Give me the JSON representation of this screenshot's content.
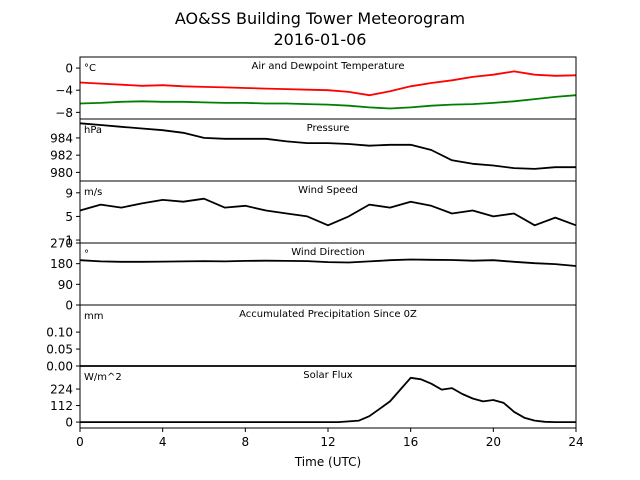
{
  "title": "AO&SS Building Tower Meteorogram",
  "subtitle": "2016-01-06",
  "xlabel": "Time (UTC)",
  "chart_data": [
    {
      "type": "line",
      "title": "Air and Dewpoint Temperature",
      "unit_label": "°C",
      "xlim": [
        0,
        24
      ],
      "ylim": [
        -9.2,
        2.0
      ],
      "yticks": [
        0,
        -4,
        -8
      ],
      "ytick_labels": [
        "0",
        "−4",
        "−8"
      ],
      "x": [
        0,
        1,
        2,
        3,
        4,
        5,
        6,
        7,
        8,
        9,
        10,
        11,
        12,
        13,
        14,
        15,
        16,
        17,
        18,
        19,
        20,
        21,
        22,
        23,
        24
      ],
      "series": [
        {
          "color": "#ff0000",
          "values": [
            -2.6,
            -2.8,
            -3.0,
            -3.2,
            -3.1,
            -3.3,
            -3.4,
            -3.5,
            -3.6,
            -3.7,
            -3.8,
            -3.9,
            -4.0,
            -4.3,
            -4.9,
            -4.2,
            -3.3,
            -2.7,
            -2.2,
            -1.6,
            -1.2,
            -0.6,
            -1.2,
            -1.4,
            -1.3
          ]
        },
        {
          "color": "#008000",
          "values": [
            -6.4,
            -6.3,
            -6.1,
            -6.0,
            -6.1,
            -6.1,
            -6.2,
            -6.3,
            -6.3,
            -6.4,
            -6.4,
            -6.5,
            -6.6,
            -6.8,
            -7.1,
            -7.3,
            -7.1,
            -6.8,
            -6.6,
            -6.5,
            -6.3,
            -6.0,
            -5.6,
            -5.2,
            -4.9
          ]
        }
      ]
    },
    {
      "type": "line",
      "title": "Pressure",
      "unit_label": "hPa",
      "xlim": [
        0,
        24
      ],
      "ylim": [
        979.0,
        986.2
      ],
      "yticks": [
        984,
        982,
        980
      ],
      "ytick_labels": [
        "984",
        "982",
        "980"
      ],
      "x": [
        0,
        1,
        2,
        3,
        4,
        5,
        6,
        7,
        8,
        9,
        10,
        11,
        12,
        13,
        14,
        15,
        16,
        17,
        18,
        19,
        20,
        21,
        22,
        23,
        24
      ],
      "series": [
        {
          "color": "#000000",
          "values": [
            985.7,
            985.5,
            985.3,
            985.1,
            984.9,
            984.6,
            984.0,
            983.9,
            983.9,
            983.9,
            983.6,
            983.4,
            983.4,
            983.3,
            983.1,
            983.2,
            983.2,
            982.6,
            981.4,
            981.0,
            980.8,
            980.5,
            980.4,
            980.6,
            980.6
          ]
        }
      ]
    },
    {
      "type": "line",
      "title": "Wind Speed",
      "unit_label": "m/s",
      "xlim": [
        0,
        24
      ],
      "ylim": [
        0.5,
        11.0
      ],
      "yticks": [
        9,
        5,
        1
      ],
      "ytick_labels": [
        "9",
        "5",
        "1"
      ],
      "x": [
        0,
        1,
        2,
        3,
        4,
        5,
        6,
        7,
        8,
        9,
        10,
        11,
        12,
        13,
        14,
        15,
        16,
        17,
        18,
        19,
        20,
        21,
        22,
        23,
        24
      ],
      "series": [
        {
          "color": "#000000",
          "values": [
            6.0,
            7.0,
            6.5,
            7.2,
            7.8,
            7.5,
            8.0,
            6.5,
            6.8,
            6.0,
            5.5,
            5.0,
            3.5,
            5.0,
            7.0,
            6.5,
            7.5,
            6.8,
            5.5,
            6.0,
            5.0,
            5.5,
            3.5,
            4.8,
            3.5
          ]
        }
      ]
    },
    {
      "type": "line",
      "title": "Wind Direction",
      "unit_label": "°",
      "xlim": [
        0,
        24
      ],
      "ylim": [
        0,
        270
      ],
      "yticks": [
        270,
        180,
        90,
        0
      ],
      "ytick_labels": [
        "270",
        "180",
        "90",
        "0"
      ],
      "x": [
        0,
        1,
        2,
        3,
        4,
        5,
        6,
        7,
        8,
        9,
        10,
        11,
        12,
        13,
        14,
        15,
        16,
        17,
        18,
        19,
        20,
        21,
        22,
        23,
        24
      ],
      "series": [
        {
          "color": "#000000",
          "values": [
            195,
            190,
            188,
            188,
            189,
            190,
            191,
            190,
            192,
            193,
            192,
            191,
            187,
            185,
            190,
            195,
            198,
            197,
            196,
            193,
            195,
            188,
            182,
            178,
            170
          ]
        }
      ]
    },
    {
      "type": "line",
      "title": "Accumulated Precipitation Since 0Z",
      "unit_label": "mm",
      "xlim": [
        0,
        24
      ],
      "ylim": [
        0,
        0.18
      ],
      "yticks": [
        0.1,
        0.05,
        0.0
      ],
      "ytick_labels": [
        "0.10",
        "0.05",
        "0.00"
      ],
      "x": [
        0,
        24
      ],
      "series": [
        {
          "color": "#000000",
          "values": [
            0,
            0
          ]
        }
      ]
    },
    {
      "type": "line",
      "title": "Solar Flux",
      "unit_label": "W/m^2",
      "xlim": [
        0,
        24
      ],
      "ylim": [
        -40,
        380
      ],
      "yticks": [
        224,
        112,
        0
      ],
      "ytick_labels": [
        "224",
        "112",
        "0"
      ],
      "xticks": [
        0,
        4,
        8,
        12,
        16,
        20,
        24
      ],
      "x": [
        0,
        12.5,
        13.5,
        14,
        14.5,
        15,
        15.5,
        16,
        16.5,
        17,
        17.5,
        18,
        18.5,
        19,
        19.5,
        20,
        20.5,
        21,
        21.5,
        22,
        22.5,
        23,
        24
      ],
      "series": [
        {
          "color": "#000000",
          "values": [
            0,
            0,
            10,
            40,
            90,
            140,
            220,
            300,
            290,
            260,
            220,
            230,
            190,
            160,
            140,
            150,
            130,
            70,
            30,
            10,
            2,
            0,
            0
          ]
        }
      ]
    }
  ]
}
